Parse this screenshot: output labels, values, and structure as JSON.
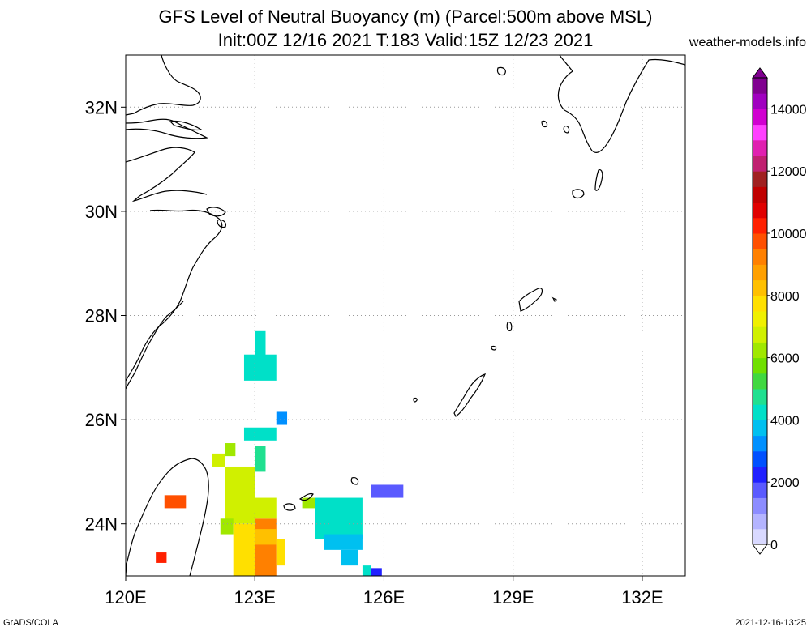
{
  "title_line1": "GFS Level of Neutral Buoyancy (m) (Parcel:500m above MSL)",
  "title_line2": "Init:00Z 12/16 2021 T:183 Valid:15Z 12/23 2021",
  "watermark": "weather-models.info",
  "footer_left": "GrADS/COLA",
  "footer_right": "2021-12-16-13:25",
  "map": {
    "lon_range": [
      120,
      133
    ],
    "lat_range": [
      23,
      33
    ],
    "lat_labels": [
      {
        "lat": 32,
        "label": "32N"
      },
      {
        "lat": 30,
        "label": "30N"
      },
      {
        "lat": 28,
        "label": "28N"
      },
      {
        "lat": 26,
        "label": "26N"
      },
      {
        "lat": 24,
        "label": "24N"
      }
    ],
    "lon_labels": [
      {
        "lon": 120,
        "label": "120E"
      },
      {
        "lon": 123,
        "label": "123E"
      },
      {
        "lon": 126,
        "label": "126E"
      },
      {
        "lon": 129,
        "label": "129E"
      },
      {
        "lon": 132,
        "label": "132E"
      }
    ],
    "field_cells": [
      {
        "lon": 123.0,
        "lat": 27.2,
        "dlon": 0.25,
        "dlat": 0.5,
        "value": 4000
      },
      {
        "lon": 122.75,
        "lat": 26.75,
        "dlon": 0.75,
        "dlat": 0.5,
        "value": 4000
      },
      {
        "lon": 123.5,
        "lat": 25.9,
        "dlon": 0.25,
        "dlat": 0.25,
        "value": 3400
      },
      {
        "lon": 122.75,
        "lat": 25.6,
        "dlon": 0.75,
        "dlat": 0.25,
        "value": 4000
      },
      {
        "lon": 123.0,
        "lat": 25.0,
        "dlon": 0.25,
        "dlat": 0.5,
        "value": 4500
      },
      {
        "lon": 122.3,
        "lat": 25.3,
        "dlon": 0.25,
        "dlat": 0.25,
        "value": 6000
      },
      {
        "lon": 122.0,
        "lat": 25.1,
        "dlon": 0.3,
        "dlat": 0.25,
        "value": 6500
      },
      {
        "lon": 122.3,
        "lat": 24.0,
        "dlon": 0.7,
        "dlat": 1.1,
        "value": 6800
      },
      {
        "lon": 122.2,
        "lat": 23.8,
        "dlon": 0.3,
        "dlat": 0.3,
        "value": 6000
      },
      {
        "lon": 122.5,
        "lat": 23.0,
        "dlon": 0.5,
        "dlat": 1.0,
        "value": 7800
      },
      {
        "lon": 123.0,
        "lat": 23.0,
        "dlon": 0.5,
        "dlat": 1.1,
        "value": 9000
      },
      {
        "lon": 123.0,
        "lat": 23.6,
        "dlon": 0.5,
        "dlat": 0.3,
        "value": 8200
      },
      {
        "lon": 123.5,
        "lat": 23.2,
        "dlon": 0.2,
        "dlat": 0.5,
        "value": 7500
      },
      {
        "lon": 123.0,
        "lat": 24.1,
        "dlon": 0.5,
        "dlat": 0.4,
        "value": 6500
      },
      {
        "lon": 124.1,
        "lat": 24.3,
        "dlon": 0.3,
        "dlat": 0.2,
        "value": 6000
      },
      {
        "lon": 124.4,
        "lat": 23.7,
        "dlon": 1.1,
        "dlat": 0.8,
        "value": 4200
      },
      {
        "lon": 124.6,
        "lat": 23.5,
        "dlon": 0.9,
        "dlat": 0.3,
        "value": 3500
      },
      {
        "lon": 125.0,
        "lat": 23.2,
        "dlon": 0.4,
        "dlat": 0.3,
        "value": 3600
      },
      {
        "lon": 125.5,
        "lat": 23.0,
        "dlon": 0.2,
        "dlat": 0.2,
        "value": 4000
      },
      {
        "lon": 125.7,
        "lat": 24.5,
        "dlon": 0.75,
        "dlat": 0.25,
        "value": 1600
      },
      {
        "lon": 125.7,
        "lat": 22.9,
        "dlon": 0.25,
        "dlat": 0.25,
        "value": 2000
      },
      {
        "lon": 120.9,
        "lat": 24.3,
        "dlon": 0.5,
        "dlat": 0.25,
        "value": 9500
      },
      {
        "lon": 120.7,
        "lat": 23.25,
        "dlon": 0.25,
        "dlat": 0.2,
        "value": 10000
      }
    ]
  },
  "colorbar": {
    "ticks": [
      {
        "value": 0,
        "label": "0"
      },
      {
        "value": 2000,
        "label": "2000"
      },
      {
        "value": 4000,
        "label": "4000"
      },
      {
        "value": 6000,
        "label": "6000"
      },
      {
        "value": 8000,
        "label": "8000"
      },
      {
        "value": 10000,
        "label": "10000"
      },
      {
        "value": 12000,
        "label": "12000"
      },
      {
        "value": 14000,
        "label": "14000"
      }
    ],
    "range": [
      0,
      15000
    ],
    "colors": [
      "#d9d9ff",
      "#b4b4ff",
      "#8c8cff",
      "#5a5aff",
      "#2020ff",
      "#0050ff",
      "#0090ff",
      "#00c0f0",
      "#00e0c8",
      "#20e090",
      "#40d840",
      "#70e000",
      "#a0e800",
      "#d0f000",
      "#f0f000",
      "#ffe000",
      "#ffc000",
      "#ffa000",
      "#ff8000",
      "#ff5000",
      "#ff2000",
      "#e00000",
      "#c00000",
      "#a02020",
      "#c02070",
      "#e020b0",
      "#ff40ff",
      "#d000d0",
      "#a000c0",
      "#800090"
    ]
  }
}
